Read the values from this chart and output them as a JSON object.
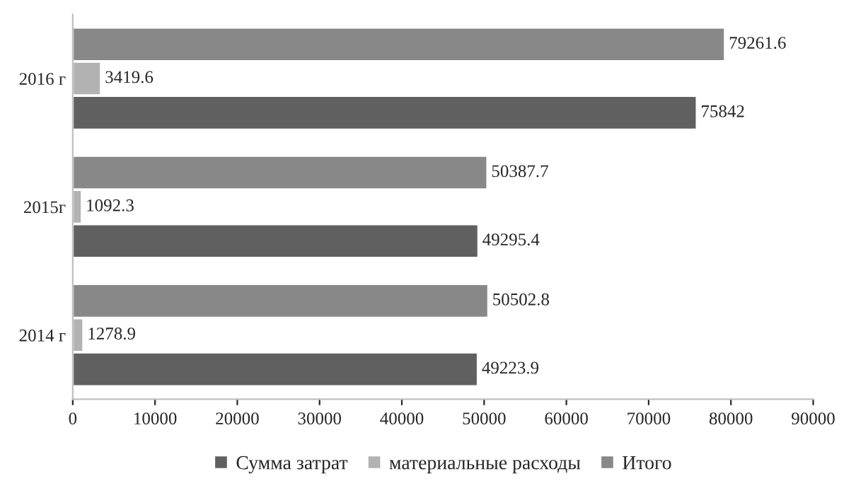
{
  "chart_data": {
    "type": "bar",
    "orientation": "horizontal",
    "categories": [
      "2016 г",
      "2015г",
      "2014 г"
    ],
    "series": [
      {
        "name": "Сумма затрат",
        "color": "#606060",
        "values": [
          75842,
          49295.4,
          49223.9
        ]
      },
      {
        "name": "материальные расходы",
        "color": "#b2b2b2",
        "values": [
          3419.6,
          1092.3,
          1278.9
        ]
      },
      {
        "name": "Итого",
        "color": "#888888",
        "values": [
          79261.6,
          50387.7,
          50502.8
        ]
      }
    ],
    "xlim": [
      0,
      90000
    ],
    "xticks": [
      0,
      10000,
      20000,
      30000,
      40000,
      50000,
      60000,
      70000,
      80000,
      90000
    ],
    "data_labels": true,
    "legend": "bottom",
    "grid": false
  }
}
